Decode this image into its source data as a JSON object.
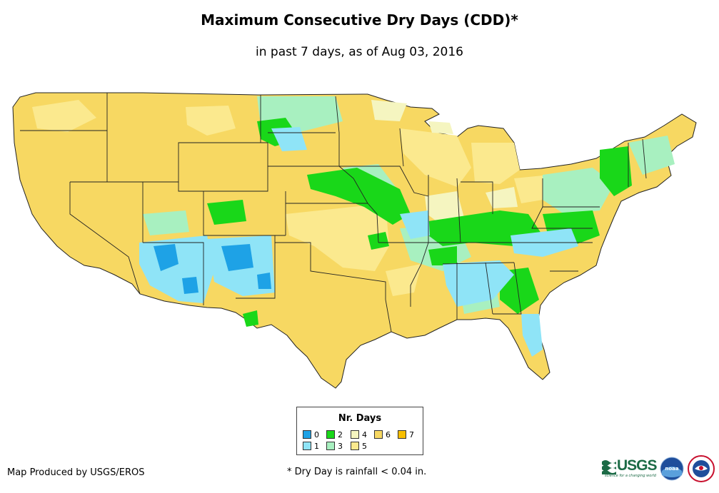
{
  "title": "Maximum Consecutive Dry Days (CDD)*",
  "subtitle": "in past 7 days, as of Aug 03, 2016",
  "legend": {
    "title": "Nr. Days",
    "items": [
      {
        "label": "0",
        "color": "#1ea2e6"
      },
      {
        "label": "1",
        "color": "#8fe4f7"
      },
      {
        "label": "2",
        "color": "#19d719"
      },
      {
        "label": "3",
        "color": "#a8f0c0"
      },
      {
        "label": "4",
        "color": "#f5f5c0"
      },
      {
        "label": "5",
        "color": "#fbe98e"
      },
      {
        "label": "6",
        "color": "#f7d862"
      },
      {
        "label": "7",
        "color": "#f7be00"
      }
    ]
  },
  "credit": "Map Produced by USGS/EROS",
  "footnote": "* Dry Day is rainfall < 0.04 in.",
  "logos": {
    "usgs_text": "USGS",
    "usgs_tagline": "science for a changing world",
    "noaa_text": "noaa"
  }
}
